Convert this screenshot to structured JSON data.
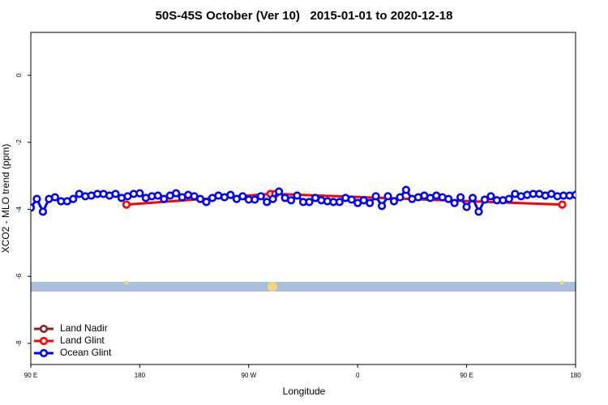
{
  "chart_data": {
    "type": "line",
    "title": "50S-45S October (Ver 10)   2015-01-01 to 2020-12-18",
    "x_label": "Longitude",
    "y_label": "XCO2 - MLO trend (ppm)",
    "xlim": [
      90,
      540
    ],
    "ylim": [
      -8.63,
      1.28
    ],
    "xticks": [
      {
        "value": 90,
        "label": "90 E"
      },
      {
        "value": 180,
        "label": "180"
      },
      {
        "value": 270,
        "label": "90 W"
      },
      {
        "value": 360,
        "label": "0"
      },
      {
        "value": 450,
        "label": "90 E"
      },
      {
        "value": 540,
        "label": "180"
      }
    ],
    "yticks": [
      0,
      -2,
      -4,
      -6,
      -8
    ],
    "legend": "bottom-left",
    "series": [
      {
        "name": "Land Nadir",
        "color": "#8b2323",
        "x": [],
        "values": []
      },
      {
        "name": "Land Glint",
        "color": "#ff0000",
        "x": [
          169,
          288,
          292,
          529
        ],
        "values": [
          -3.86,
          -3.54,
          -3.54,
          -3.86
        ]
      },
      {
        "name": "Ocean Glint",
        "color": "#0000ff",
        "x": [
          90,
          95,
          100,
          105,
          110,
          115,
          120,
          125,
          130,
          135,
          140,
          145,
          150,
          155,
          160,
          165,
          170,
          175,
          180,
          185,
          190,
          195,
          200,
          205,
          210,
          215,
          220,
          225,
          230,
          235,
          240,
          245,
          250,
          255,
          260,
          265,
          270,
          275,
          280,
          285,
          290,
          295,
          300,
          305,
          310,
          315,
          320,
          325,
          330,
          335,
          340,
          345,
          350,
          355,
          360,
          365,
          370,
          375,
          380,
          385,
          390,
          395,
          400,
          405,
          410,
          415,
          420,
          425,
          430,
          435,
          440,
          445,
          450,
          455,
          460,
          465,
          470,
          475,
          480,
          485,
          490,
          495,
          500,
          505,
          510,
          515,
          520,
          525,
          530,
          535,
          540
        ],
        "values": [
          -3.95,
          -3.69,
          -4.07,
          -3.69,
          -3.64,
          -3.76,
          -3.76,
          -3.69,
          -3.54,
          -3.61,
          -3.59,
          -3.54,
          -3.54,
          -3.59,
          -3.54,
          -3.66,
          -3.61,
          -3.54,
          -3.52,
          -3.66,
          -3.61,
          -3.59,
          -3.69,
          -3.59,
          -3.52,
          -3.64,
          -3.57,
          -3.61,
          -3.69,
          -3.78,
          -3.66,
          -3.59,
          -3.64,
          -3.57,
          -3.69,
          -3.61,
          -3.71,
          -3.71,
          -3.61,
          -3.78,
          -3.69,
          -3.47,
          -3.66,
          -3.73,
          -3.59,
          -3.78,
          -3.78,
          -3.66,
          -3.73,
          -3.76,
          -3.78,
          -3.78,
          -3.66,
          -3.71,
          -3.81,
          -3.73,
          -3.81,
          -3.61,
          -3.9,
          -3.61,
          -3.76,
          -3.64,
          -3.42,
          -3.69,
          -3.64,
          -3.59,
          -3.66,
          -3.59,
          -3.64,
          -3.69,
          -3.81,
          -3.64,
          -3.93,
          -3.66,
          -4.07,
          -3.71,
          -3.61,
          -3.73,
          -3.73,
          -3.69,
          -3.54,
          -3.61,
          -3.57,
          -3.54,
          -3.54,
          -3.59,
          -3.54,
          -3.61,
          -3.59,
          -3.59,
          -3.57
        ]
      }
    ]
  }
}
